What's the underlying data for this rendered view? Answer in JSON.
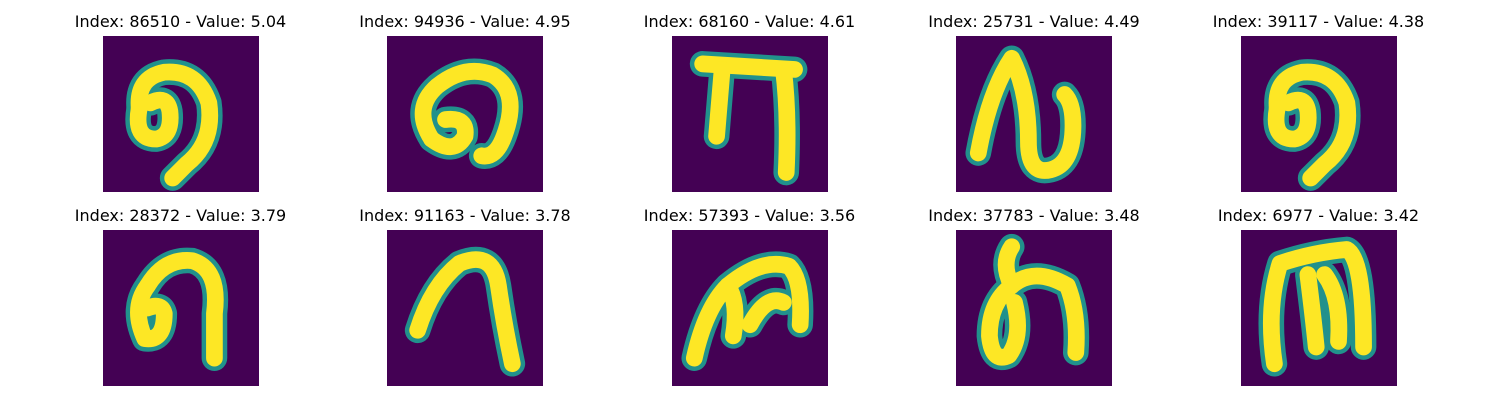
{
  "colors": {
    "background": "#440154",
    "stroke_core": "#fde725",
    "stroke_edge": "#21918c"
  },
  "panels": [
    {
      "title": "Index: 86510 - Value: 5.04",
      "glyph": "curl-loop"
    },
    {
      "title": "Index: 94936 - Value: 4.95",
      "glyph": "curl-loop-wide"
    },
    {
      "title": "Index: 68160 - Value: 4.61",
      "glyph": "pi-shape"
    },
    {
      "title": "Index: 25731 - Value: 4.49",
      "glyph": "n-loop"
    },
    {
      "title": "Index: 39117 - Value: 4.38",
      "glyph": "curl-loop"
    },
    {
      "title": "Index: 28372 - Value: 3.79",
      "glyph": "hook-loop"
    },
    {
      "title": "Index: 91163 - Value: 3.78",
      "glyph": "arch"
    },
    {
      "title": "Index: 57393 - Value: 3.56",
      "glyph": "m-shape"
    },
    {
      "title": "Index: 37783 - Value: 3.48",
      "glyph": "loop-stem"
    },
    {
      "title": "Index: 6977 - Value: 3.42",
      "glyph": "m-bold"
    }
  ]
}
